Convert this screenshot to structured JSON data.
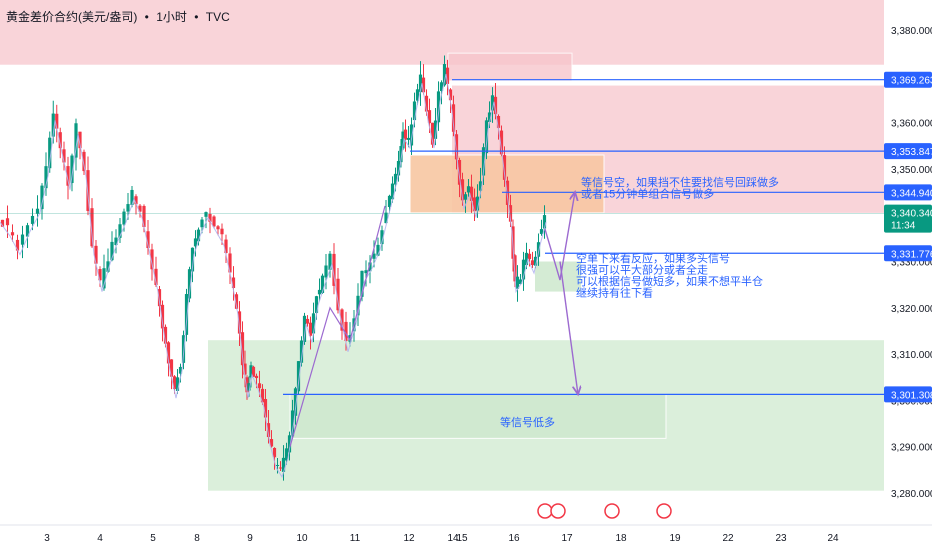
{
  "header": {
    "symbol": "黄金差价合约(美元/盎司)",
    "sep1": "•",
    "interval": "1小时",
    "sep2": "•",
    "source": "TVC"
  },
  "colors": {
    "up": "#089981",
    "down": "#f23645",
    "price_line": "#2962ff",
    "red_zone": "#f7c6cc",
    "orange_zone": "#f8c7a3",
    "green_zone": "#cfe9cf",
    "arrow": "#9c6ad0",
    "current_price_bg": "#089981",
    "axis_text": "#131722",
    "annotation_text": "#2962ff"
  },
  "chart_data": {
    "type": "candlestick",
    "x_ticks": [
      "3",
      "4",
      "5",
      "8",
      "9",
      "10",
      "11",
      "12",
      "14",
      "15",
      "16",
      "17",
      "18",
      "19",
      "22",
      "23",
      "24"
    ],
    "y_ticks": [
      "3,280.000",
      "3,290.000",
      "3,300.000",
      "3,310.000",
      "3,320.000",
      "3,330.000",
      "3,340.000",
      "3,350.000",
      "3,360.000",
      "3,370.000",
      "3,380.000"
    ],
    "y_range": [
      3277,
      3388
    ],
    "current_price": {
      "value": "3,340.340",
      "countdown": "11:34"
    },
    "price_levels": [
      {
        "name": "level-3369",
        "label": "3,369.263",
        "value": 3369.263
      },
      {
        "name": "level-3353",
        "label": "3,353.847",
        "value": 3353.847
      },
      {
        "name": "level-3344",
        "label": "3,344.940",
        "value": 3344.94
      },
      {
        "name": "level-3331",
        "label": "3,331.776",
        "value": 3331.776
      },
      {
        "name": "level-3301",
        "label": "3,301.308",
        "value": 3301.308
      }
    ],
    "annotations": [
      {
        "name": "annotation-short-signal",
        "lines": [
          "等信号空，如果挡不住要找信号回踩做多",
          "或者15分钟单组合信号做多"
        ]
      },
      {
        "name": "annotation-short-watch",
        "lines": [
          "空单下来看反应，如果多头信号",
          "很强可以平大部分或者全走",
          "可以根据信号做短多，如果不想平半仓",
          "继续持有往下看"
        ]
      },
      {
        "name": "annotation-low-long",
        "lines": [
          "等信号低多"
        ]
      }
    ]
  }
}
